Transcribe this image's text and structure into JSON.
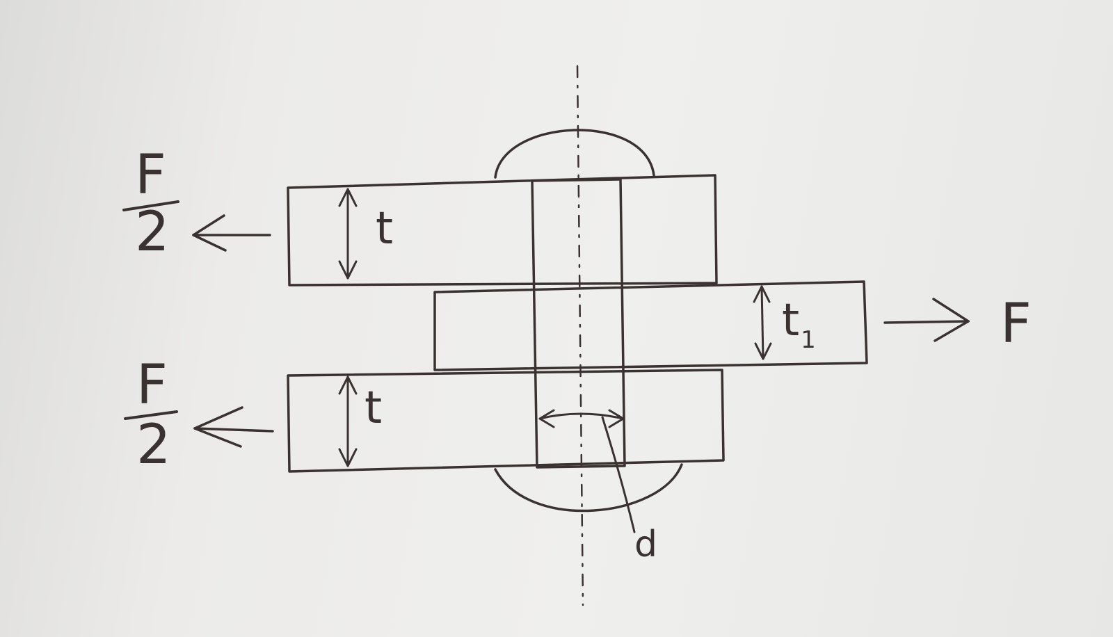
{
  "labels": {
    "top_force_numerator": "F",
    "top_force_denominator": "2",
    "bottom_force_numerator": "F",
    "bottom_force_denominator": "2",
    "right_force": "F",
    "top_plate_thickness": "t",
    "bottom_plate_thickness": "t",
    "middle_plate_thickness": "t",
    "middle_plate_thickness_subscript": "1",
    "rivet_diameter": "d"
  },
  "colors": {
    "ink": "#3a3230",
    "paper": "#ecebe9"
  }
}
